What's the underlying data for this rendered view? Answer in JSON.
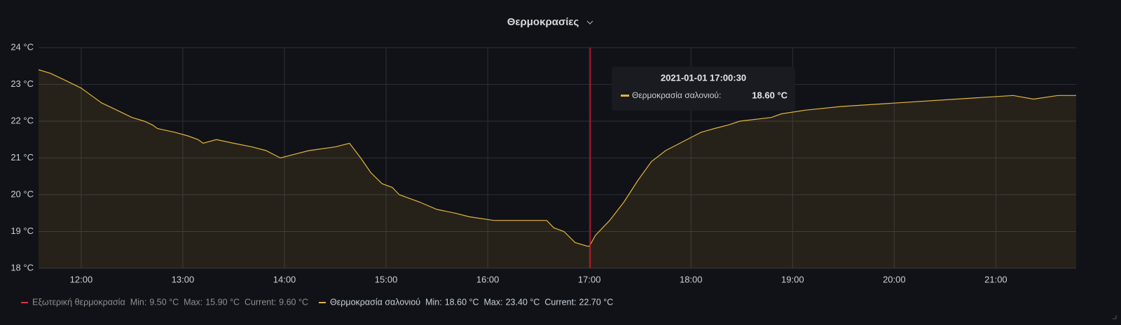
{
  "chart_data": {
    "type": "line",
    "title": "Θερμοκρασίες",
    "xlim": [
      11.58,
      21.79
    ],
    "xticks": [
      {
        "value": 12,
        "label": "12:00"
      },
      {
        "value": 13,
        "label": "13:00"
      },
      {
        "value": 14,
        "label": "14:00"
      },
      {
        "value": 15,
        "label": "15:00"
      },
      {
        "value": 16,
        "label": "16:00"
      },
      {
        "value": 17,
        "label": "17:00"
      },
      {
        "value": 18,
        "label": "18:00"
      },
      {
        "value": 19,
        "label": "19:00"
      },
      {
        "value": 20,
        "label": "20:00"
      },
      {
        "value": 21,
        "label": "21:00"
      }
    ],
    "ylim": [
      18,
      24
    ],
    "yticks": [
      {
        "value": 18,
        "label": "18 °C"
      },
      {
        "value": 19,
        "label": "19 °C"
      },
      {
        "value": 20,
        "label": "20 °C"
      },
      {
        "value": 21,
        "label": "21 °C"
      },
      {
        "value": 22,
        "label": "22 °C"
      },
      {
        "value": 23,
        "label": "23 °C"
      },
      {
        "value": 24,
        "label": "24 °C"
      }
    ],
    "grid": true,
    "x": [
      11.58,
      11.7,
      11.85,
      12.0,
      12.1,
      12.2,
      12.35,
      12.5,
      12.62,
      12.7,
      12.75,
      12.92,
      13.05,
      13.15,
      13.2,
      13.33,
      13.5,
      13.68,
      13.82,
      13.96,
      14.1,
      14.24,
      14.5,
      14.64,
      14.75,
      14.85,
      14.96,
      15.06,
      15.13,
      15.33,
      15.5,
      15.68,
      15.82,
      16.06,
      16.58,
      16.65,
      16.75,
      16.86,
      16.98,
      17.0,
      17.06,
      17.2,
      17.34,
      17.48,
      17.61,
      17.75,
      17.89,
      18.03,
      18.1,
      18.23,
      18.37,
      18.48,
      18.79,
      18.89,
      19.13,
      19.48,
      20.61,
      21.17,
      21.37,
      21.61,
      21.79
    ],
    "series": [
      {
        "name": "Εξωτερική θερμοκρασία",
        "color": "#e02f44",
        "stats": [
          "9.50 °C",
          "15.90 °C",
          "9.60 °C"
        ]
      },
      {
        "name": "Θερμοκρασία σαλονιού",
        "color": "#e0b43c",
        "stats": [
          "18.60 °C",
          "23.40 °C",
          "22.70 °C"
        ],
        "values": [
          23.4,
          23.3,
          23.1,
          22.9,
          22.7,
          22.5,
          22.3,
          22.1,
          22.0,
          21.9,
          21.8,
          21.7,
          21.6,
          21.5,
          21.4,
          21.5,
          21.4,
          21.3,
          21.2,
          21.0,
          21.1,
          21.2,
          21.3,
          21.4,
          21.0,
          20.6,
          20.3,
          20.2,
          20.0,
          19.8,
          19.6,
          19.5,
          19.4,
          19.3,
          19.3,
          19.1,
          19.0,
          18.7,
          18.6,
          18.6,
          18.9,
          19.3,
          19.8,
          20.4,
          20.9,
          21.2,
          21.4,
          21.6,
          21.7,
          21.8,
          21.9,
          22.0,
          22.1,
          22.2,
          22.3,
          22.4,
          22.6,
          22.7,
          22.6,
          22.7,
          22.7
        ]
      }
    ],
    "stat_labels": [
      "Min:",
      "Max:",
      "Current:"
    ],
    "tooltip": {
      "x": 17.0083,
      "time": "2021-01-01 17:00:30",
      "series": "Θερμοκρασία σαλονιού:",
      "value": "18.60 °C"
    }
  }
}
